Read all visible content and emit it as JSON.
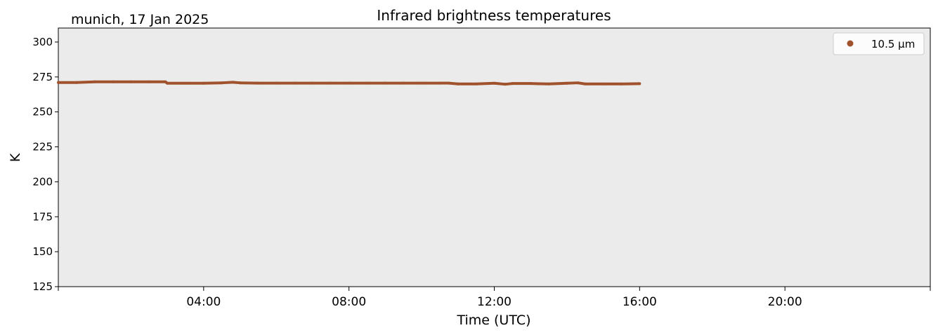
{
  "chart_data": {
    "type": "scatter",
    "title": "Infrared brightness temperatures",
    "subtitle": "munich, 17 Jan 2025",
    "xlabel": "Time (UTC)",
    "ylabel": "K",
    "xlim_hours": [
      0,
      24
    ],
    "ylim": [
      125,
      310
    ],
    "yticks": [
      125,
      150,
      175,
      200,
      225,
      250,
      275,
      300
    ],
    "xticks": [
      {
        "hour": 4,
        "label": "04:00"
      },
      {
        "hour": 8,
        "label": "08:00"
      },
      {
        "hour": 12,
        "label": "12:00"
      },
      {
        "hour": 16,
        "label": "16:00"
      },
      {
        "hour": 20,
        "label": "20:00"
      }
    ],
    "x_minor_ticks_hours": [
      0,
      24
    ],
    "grid": false,
    "background_color": "#ebebeb",
    "legend_position": "top-right",
    "series": [
      {
        "name": "10.5 µm",
        "color": "#a0522d",
        "x_hours": [
          0.0,
          0.5,
          1.0,
          1.5,
          2.0,
          2.5,
          2.95,
          3.0,
          3.5,
          4.0,
          4.5,
          4.8,
          5.0,
          5.5,
          6.0,
          6.5,
          7.0,
          7.5,
          8.0,
          8.5,
          9.0,
          9.5,
          10.0,
          10.5,
          10.75,
          11.0,
          11.5,
          12.0,
          12.3,
          12.5,
          13.0,
          13.5,
          14.0,
          14.3,
          14.5,
          15.0,
          15.5,
          16.0
        ],
        "values": [
          271,
          271,
          271.5,
          271.5,
          271.5,
          271.5,
          271.5,
          270.5,
          270.5,
          270.5,
          270.8,
          271.2,
          270.8,
          270.6,
          270.6,
          270.6,
          270.6,
          270.6,
          270.6,
          270.6,
          270.6,
          270.6,
          270.6,
          270.6,
          270.6,
          270,
          270,
          270.5,
          269.8,
          270.3,
          270.3,
          270,
          270.5,
          270.8,
          270,
          270,
          270,
          270.2
        ]
      }
    ]
  }
}
